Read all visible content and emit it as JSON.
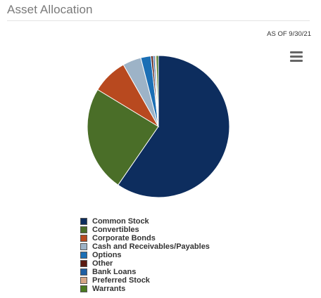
{
  "header": {
    "title": "Asset Allocation"
  },
  "as_of": "AS OF 9/30/21",
  "menu": {
    "icon": "hamburger-menu-icon"
  },
  "chart_data": {
    "type": "pie",
    "title": "",
    "legend_position": "bottom-left",
    "slices": [
      {
        "label": "Common Stock",
        "value": 59.6,
        "color": "#0d2d5e"
      },
      {
        "label": "Convertibles",
        "value": 24.1,
        "color": "#4a6e28"
      },
      {
        "label": "Corporate Bonds",
        "value": 8.1,
        "color": "#b8491f"
      },
      {
        "label": "Cash and Receivables/Payables",
        "value": 4.2,
        "color": "#9db3c7"
      },
      {
        "label": "Options",
        "value": 2.3,
        "color": "#1b6fb5"
      },
      {
        "label": "Other",
        "value": 0.5,
        "color": "#5a1a10"
      },
      {
        "label": "Bank Loans",
        "value": 0.4,
        "color": "#1e5fa3"
      },
      {
        "label": "Preferred Stock",
        "value": 0.3,
        "color": "#d6a585"
      },
      {
        "label": "Warrants",
        "value": 0.5,
        "color": "#4a7a20"
      }
    ]
  }
}
